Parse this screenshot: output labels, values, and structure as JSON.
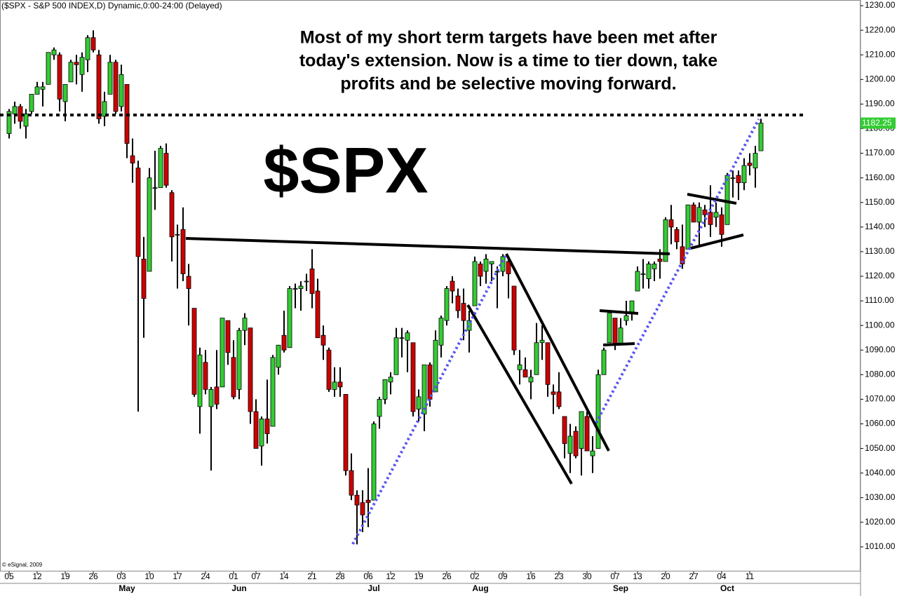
{
  "chart_data": {
    "type": "candlestick",
    "title": "($SPX - S&P 500 INDEX,D) Dynamic,0:00-24:00 (Delayed)",
    "annotation": [
      "Most of my short term targets have been met after",
      "today's extension.  Now is a time to tier down, take",
      "profits and be selective moving forward."
    ],
    "symbol": "$SPX",
    "copyright": "© eSignal, 2009",
    "up_color": "#33cc33",
    "down_color": "#cc0000",
    "categories": [
      "05",
      null,
      null,
      null,
      null,
      "12",
      null,
      null,
      null,
      null,
      "19",
      null,
      null,
      null,
      null,
      "26",
      null,
      null,
      null,
      null,
      "03",
      null,
      null,
      null,
      null,
      "10",
      null,
      null,
      null,
      null,
      "17",
      null,
      null,
      null,
      null,
      "24",
      null,
      null,
      null,
      null,
      "01",
      null,
      null,
      null,
      "07",
      null,
      null,
      null,
      null,
      "14",
      null,
      null,
      null,
      null,
      "21",
      null,
      null,
      null,
      null,
      "28",
      null,
      null,
      null,
      null,
      "06",
      null,
      null,
      null,
      "12",
      null,
      null,
      null,
      null,
      "19",
      null,
      null,
      null,
      null,
      "26",
      null,
      null,
      null,
      null,
      "02",
      null,
      null,
      null,
      null,
      "09",
      null,
      null,
      null,
      null,
      "16",
      null,
      null,
      null,
      null,
      "23",
      null,
      null,
      null,
      null,
      "30",
      null,
      null,
      null,
      null,
      "07",
      null,
      null,
      null,
      "13",
      null,
      null,
      null,
      null,
      "20",
      null,
      null,
      null,
      null,
      "27",
      null,
      null,
      null,
      null,
      "04",
      null,
      null,
      null,
      null,
      "11",
      null,
      null
    ],
    "months": [
      null,
      null,
      null,
      null,
      null,
      null,
      null,
      null,
      null,
      null,
      null,
      null,
      null,
      null,
      null,
      null,
      null,
      null,
      null,
      null,
      "May",
      null,
      null,
      null,
      null,
      null,
      null,
      null,
      null,
      null,
      null,
      null,
      null,
      null,
      null,
      null,
      null,
      null,
      null,
      null,
      "Jun",
      null,
      null,
      null,
      null,
      null,
      null,
      null,
      null,
      null,
      null,
      null,
      null,
      null,
      null,
      null,
      null,
      null,
      null,
      null,
      null,
      null,
      null,
      null,
      "Jul",
      null,
      null,
      null,
      null,
      null,
      null,
      null,
      null,
      null,
      null,
      null,
      null,
      null,
      null,
      null,
      null,
      null,
      null,
      "Aug",
      null,
      null,
      null,
      null,
      null,
      null,
      null,
      null,
      null,
      null,
      null,
      null,
      null,
      null,
      null,
      null,
      null,
      null,
      null,
      null,
      null,
      null,
      null,
      null,
      "Sep",
      null,
      null,
      null,
      null,
      null,
      null,
      null,
      null,
      null,
      null,
      null,
      null,
      null,
      null,
      null,
      null,
      null,
      null,
      "Oct",
      null,
      null,
      null,
      null,
      null,
      null,
      null,
      null
    ],
    "open": [
      1178,
      1186,
      1189,
      1181,
      1187,
      1194,
      1196,
      1198,
      1210,
      1210,
      1191,
      1199,
      1207,
      1202,
      1208,
      1217,
      1210,
      1185,
      1194,
      1207,
      1189,
      1198,
      1169,
      1164,
      1127,
      1122,
      1156,
      1156,
      1170,
      1154,
      1137,
      1139,
      1120,
      1107,
      1067,
      1085,
      1067,
      1075,
      1075,
      1102,
      1087,
      1074,
      1098,
      1099,
      1065,
      1051,
      1062,
      1059,
      1083,
      1096,
      1091,
      1115,
      1115,
      1118,
      1123,
      1114,
      1096,
      1090,
      1074,
      1077,
      1072,
      1041,
      1031,
      1028,
      1029,
      1029,
      1063,
      1070,
      1077,
      1080,
      1095,
      1094,
      1093,
      1066,
      1064,
      1084,
      1073,
      1092,
      1102,
      1118,
      1112,
      1109,
      1098,
      1108,
      1125,
      1122,
      1125,
      1122,
      1122,
      1126,
      1116,
      1082,
      1082,
      1077,
      1080,
      1093,
      1093,
      1073,
      1073,
      1063,
      1048,
      1057,
      1050,
      1063,
      1047,
      1050,
      1080,
      1093,
      1103,
      1092,
      1102,
      1105,
      1114,
      1121,
      1119,
      1123,
      1127,
      1126,
      1143,
      1139,
      1132,
      1131,
      1149,
      1142,
      1147,
      1146,
      1144,
      1145,
      1141,
      1160,
      1161,
      1158,
      1166,
      1164,
      1171
    ],
    "high": [
      1188,
      1191,
      1190,
      1188,
      1194,
      1199,
      1199,
      1211,
      1213,
      1211,
      1198,
      1208,
      1210,
      1211,
      1218,
      1220,
      1212,
      1195,
      1210,
      1208,
      1206,
      1198,
      1176,
      1167,
      1136,
      1164,
      1171,
      1173,
      1174,
      1155,
      1141,
      1148,
      1125,
      1107,
      1091,
      1090,
      1075,
      1090,
      1103,
      1102,
      1094,
      1099,
      1105,
      1099,
      1070,
      1063,
      1078,
      1088,
      1092,
      1106,
      1116,
      1117,
      1118,
      1121,
      1131,
      1119,
      1100,
      1091,
      1083,
      1083,
      1072,
      1048,
      1033,
      1033,
      1042,
      1061,
      1071,
      1078,
      1081,
      1099,
      1099,
      1098,
      1093,
      1074,
      1084,
      1085,
      1098,
      1104,
      1116,
      1120,
      1115,
      1115,
      1106,
      1128,
      1126,
      1129,
      1126,
      1124,
      1129,
      1127,
      1116,
      1090,
      1087,
      1082,
      1101,
      1100,
      1093,
      1076,
      1081,
      1063,
      1060,
      1059,
      1065,
      1065,
      1055,
      1082,
      1091,
      1105,
      1103,
      1103,
      1110,
      1110,
      1124,
      1127,
      1126,
      1126,
      1131,
      1144,
      1149,
      1140,
      1141,
      1149,
      1150,
      1150,
      1149,
      1157,
      1150,
      1148,
      1162,
      1163,
      1163,
      1168,
      1170,
      1173,
      1184
    ],
    "low": [
      1176,
      1182,
      1180,
      1176,
      1186,
      1194,
      1189,
      1198,
      1208,
      1187,
      1183,
      1199,
      1198,
      1195,
      1203,
      1211,
      1182,
      1181,
      1194,
      1186,
      1187,
      1168,
      1158,
      1065,
      1095,
      1122,
      1147,
      1156,
      1156,
      1126,
      1115,
      1118,
      1100,
      1071,
      1056,
      1072,
      1041,
      1066,
      1075,
      1084,
      1070,
      1070,
      1092,
      1060,
      1050,
      1043,
      1052,
      1059,
      1080,
      1089,
      1091,
      1107,
      1106,
      1114,
      1107,
      1095,
      1086,
      1073,
      1071,
      1071,
      1039,
      1029,
      1011,
      1016,
      1018,
      1029,
      1058,
      1068,
      1072,
      1080,
      1087,
      1081,
      1063,
      1061,
      1057,
      1067,
      1073,
      1087,
      1100,
      1109,
      1103,
      1094,
      1089,
      1108,
      1116,
      1117,
      1118,
      1107,
      1120,
      1111,
      1088,
      1076,
      1079,
      1070,
      1080,
      1086,
      1071,
      1064,
      1066,
      1046,
      1040,
      1046,
      1039,
      1049,
      1040,
      1050,
      1080,
      1093,
      1090,
      1092,
      1100,
      1102,
      1114,
      1115,
      1115,
      1118,
      1119,
      1126,
      1133,
      1131,
      1123,
      1131,
      1142,
      1132,
      1140,
      1136,
      1140,
      1132,
      1141,
      1152,
      1151,
      1155,
      1161,
      1156,
      1171
    ],
    "close": [
      1187,
      1189,
      1183,
      1186,
      1194,
      1197,
      1197,
      1211,
      1212,
      1192,
      1198,
      1207,
      1206,
      1209,
      1217,
      1212,
      1184,
      1191,
      1207,
      1187,
      1202,
      1174,
      1166,
      1128,
      1111,
      1160,
      1156,
      1172,
      1157,
      1136,
      1137,
      1121,
      1115,
      1072,
      1088,
      1074,
      1074,
      1068,
      1103,
      1089,
      1071,
      1098,
      1103,
      1065,
      1050,
      1062,
      1056,
      1087,
      1092,
      1090,
      1115,
      1115,
      1116,
      1118,
      1113,
      1095,
      1092,
      1074,
      1077,
      1075,
      1041,
      1031,
      1027,
      1023,
      1028,
      1060,
      1070,
      1078,
      1079,
      1095,
      1095,
      1097,
      1065,
      1071,
      1084,
      1070,
      1094,
      1103,
      1115,
      1114,
      1106,
      1102,
      1102,
      1126,
      1120,
      1127,
      1126,
      1122,
      1128,
      1121,
      1090,
      1084,
      1079,
      1079,
      1093,
      1094,
      1076,
      1072,
      1067,
      1052,
      1055,
      1047,
      1065,
      1049,
      1049,
      1080,
      1090,
      1105,
      1092,
      1099,
      1104,
      1110,
      1122,
      1121,
      1125,
      1125,
      1126,
      1143,
      1140,
      1134,
      1125,
      1149,
      1142,
      1148,
      1145,
      1141,
      1146,
      1137,
      1161,
      1160,
      1158,
      1165,
      1165,
      1170,
      1182.25
    ],
    "ylim": [
      1000,
      1232.3
    ],
    "yticks": [
      {
        "value": 1010,
        "label": "1010.00"
      },
      {
        "value": 1020,
        "label": "1020.00"
      },
      {
        "value": 1030,
        "label": "1030.00"
      },
      {
        "value": 1040,
        "label": "1040.00"
      },
      {
        "value": 1050,
        "label": "1050.00"
      },
      {
        "value": 1060,
        "label": "1060.00"
      },
      {
        "value": 1070,
        "label": "1070.00"
      },
      {
        "value": 1080,
        "label": "1080.00"
      },
      {
        "value": 1090,
        "label": "1090.00"
      },
      {
        "value": 1100,
        "label": "1100.00"
      },
      {
        "value": 1110,
        "label": "1110.00"
      },
      {
        "value": 1120,
        "label": "1120.00"
      },
      {
        "value": 1130,
        "label": "1130.00"
      },
      {
        "value": 1140,
        "label": "1140.00"
      },
      {
        "value": 1150,
        "label": "1150.00"
      },
      {
        "value": 1160,
        "label": "1160.00"
      },
      {
        "value": 1170,
        "label": "1170.00"
      },
      {
        "value": 1180,
        "label": "1180.00"
      },
      {
        "value": 1190,
        "label": "1190.00"
      },
      {
        "value": 1200,
        "label": "1200.00"
      },
      {
        "value": 1210,
        "label": "1210.00"
      },
      {
        "value": 1220,
        "label": "1220.00"
      },
      {
        "value": 1230,
        "label": "1230.00"
      }
    ],
    "grid": false
  }
}
